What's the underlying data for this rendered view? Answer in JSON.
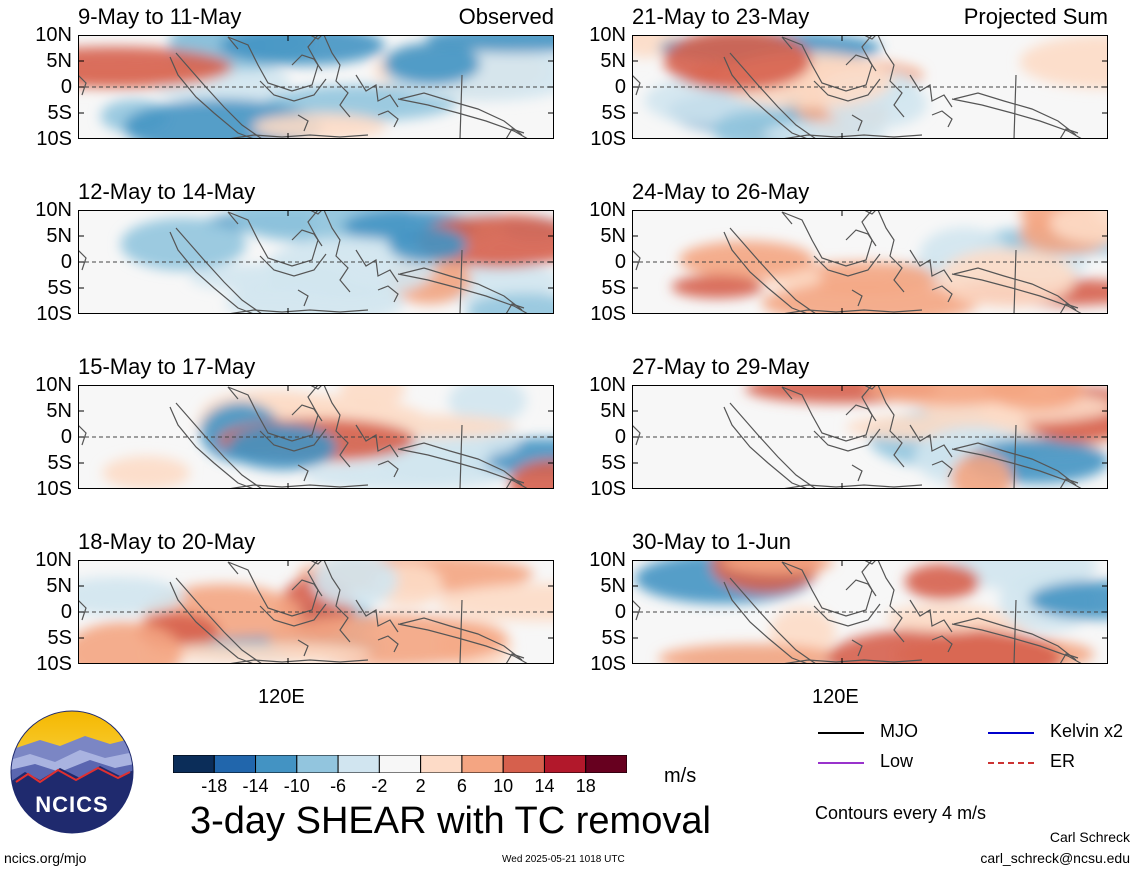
{
  "panels": {
    "left": [
      {
        "title": "9-May to 11-May",
        "tag": "Observed"
      },
      {
        "title": "12-May to 14-May",
        "tag": ""
      },
      {
        "title": "15-May to 17-May",
        "tag": ""
      },
      {
        "title": "18-May to 20-May",
        "tag": ""
      }
    ],
    "right": [
      {
        "title": "21-May to 23-May",
        "tag": "Projected Sum"
      },
      {
        "title": "24-May to 26-May",
        "tag": ""
      },
      {
        "title": "27-May to 29-May",
        "tag": ""
      },
      {
        "title": "30-May to 1-Jun",
        "tag": ""
      }
    ]
  },
  "lat_labels": [
    "10N",
    "5N",
    "0",
    "5S",
    "10S"
  ],
  "lon_label": "120E",
  "colorbar": {
    "labels": [
      "-18",
      "-14",
      "-10",
      "-6",
      "-2",
      "2",
      "6",
      "10",
      "14",
      "18"
    ],
    "colors": [
      "#0b2d59",
      "#2166ac",
      "#4393c3",
      "#92c5de",
      "#d1e5f0",
      "#f7f7f7",
      "#fddbc7",
      "#f4a582",
      "#d6604d",
      "#b2182b",
      "#67001f"
    ],
    "units": "m/s"
  },
  "legend": [
    {
      "label": "MJO",
      "color": "#000000"
    },
    {
      "label": "Kelvin x2",
      "color": "#0000cc"
    },
    {
      "label": "Low",
      "color": "#9933cc"
    },
    {
      "label": "ER",
      "color": "#cc3333"
    }
  ],
  "contour_note": "Contours every 4 m/s",
  "main_title": "3-day SHEAR with TC removal",
  "logo_text": "NCICS",
  "footer": {
    "left": "ncics.org/mjo",
    "center": "Wed 2025-05-21 1018 UTC",
    "author": "Carl Schreck",
    "email": "carl_schreck@ncsu.edu"
  }
}
